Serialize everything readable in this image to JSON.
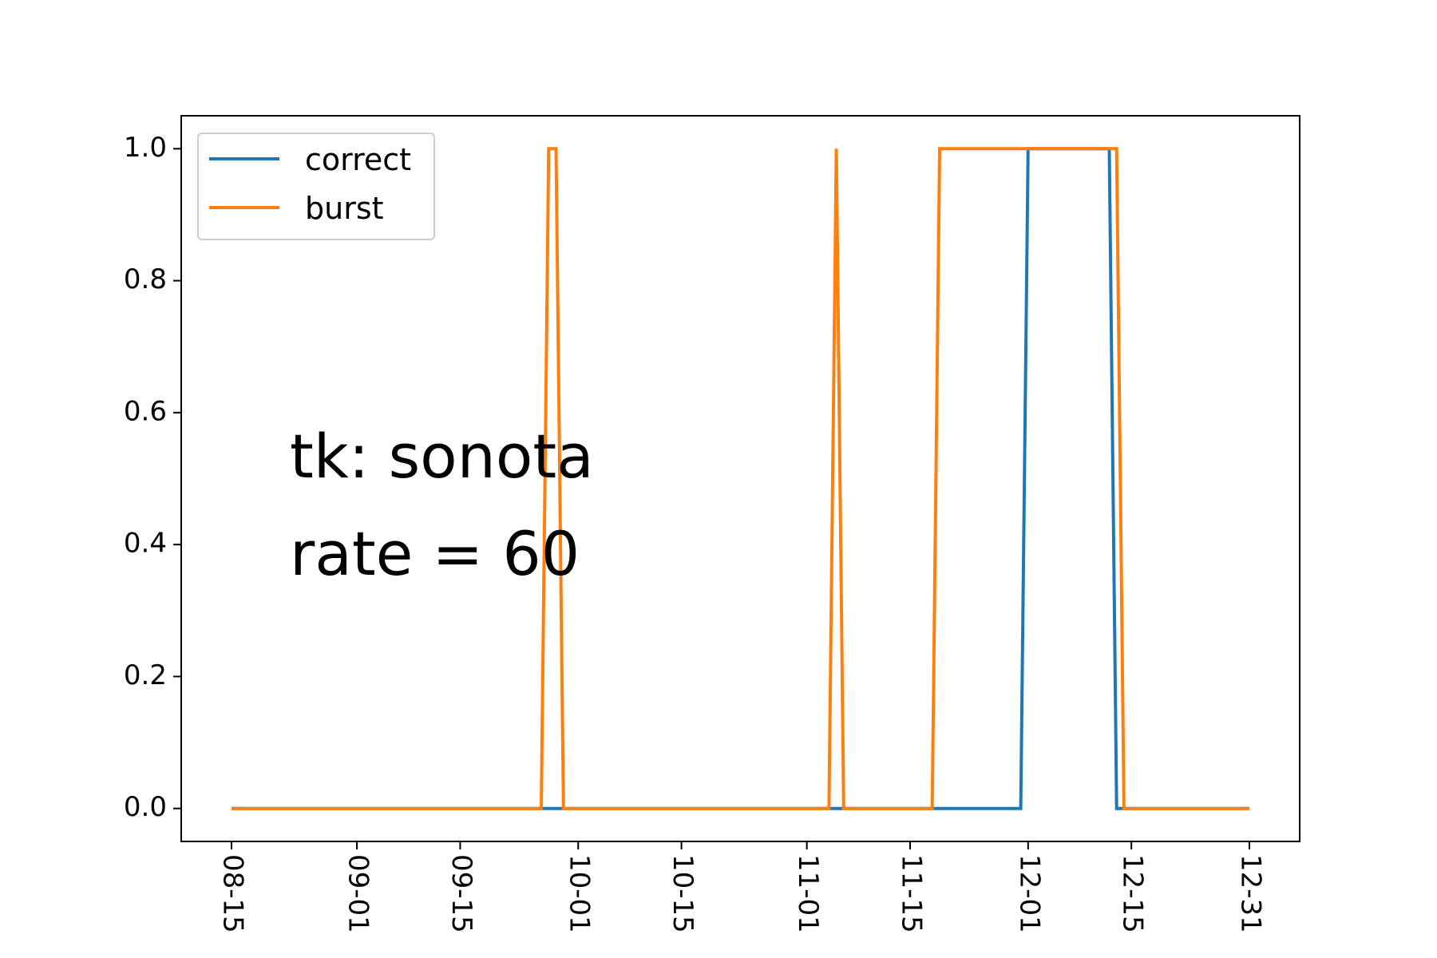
{
  "chart_data": {
    "type": "line",
    "title": "",
    "xlabel": "",
    "ylabel": "",
    "x_axis": {
      "kind": "date",
      "start": "08-15",
      "end": "12-31",
      "tick_labels": [
        "08-15",
        "09-01",
        "09-15",
        "10-01",
        "10-15",
        "11-01",
        "11-15",
        "12-01",
        "12-15",
        "12-31"
      ]
    },
    "ylim": [
      -0.05,
      1.05
    ],
    "y_ticks": [
      "0.0",
      "0.2",
      "0.4",
      "0.6",
      "0.8",
      "1.0"
    ],
    "grid": false,
    "legend": {
      "placement": "top-left"
    },
    "annotation": {
      "line1": "tk: sonota",
      "line2": "rate = 60"
    },
    "series": [
      {
        "name": "correct",
        "color": "#1f77b4",
        "points": [
          [
            "08-15",
            0
          ],
          [
            "11-30",
            0
          ],
          [
            "12-01",
            1
          ],
          [
            "12-12",
            1
          ],
          [
            "12-13",
            0
          ],
          [
            "12-31",
            0
          ]
        ]
      },
      {
        "name": "burst",
        "color": "#ff7f0e",
        "points": [
          [
            "08-15",
            0
          ],
          [
            "09-26",
            0
          ],
          [
            "09-27",
            1
          ],
          [
            "09-28",
            1
          ],
          [
            "09-29",
            0
          ],
          [
            "11-04",
            0
          ],
          [
            "11-05",
            1
          ],
          [
            "11-06",
            0
          ],
          [
            "11-18",
            0
          ],
          [
            "11-19",
            1
          ],
          [
            "12-13",
            1
          ],
          [
            "12-14",
            0
          ],
          [
            "12-31",
            0
          ]
        ]
      }
    ]
  }
}
